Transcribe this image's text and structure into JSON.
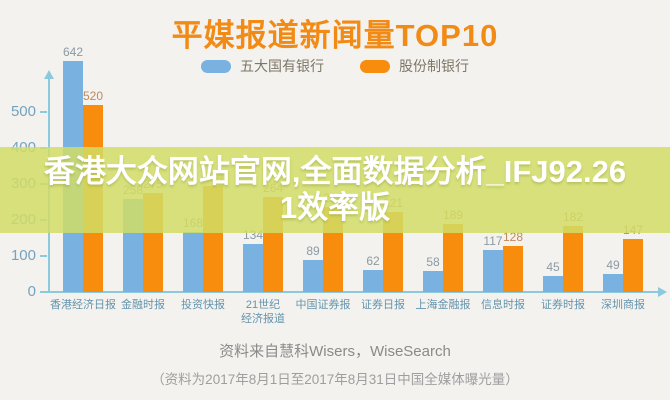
{
  "title": "平媒报道新闻量TOP10",
  "watermark": {
    "line1": "香港大众网站官网,全面数据分析_IFJ92.26",
    "line2": "1效率版"
  },
  "footer": {
    "line1": "资料来自慧科Wisers，WiseSearch",
    "line2": "（资料为2017年8月1日至2017年8月31日中国全媒体曝光量）"
  },
  "chart_data": {
    "type": "bar",
    "title": "平媒报道新闻量TOP10",
    "categories": [
      "香港经济日报",
      "金融时报",
      "投资快报",
      "21世纪\n经济报道",
      "中国证券报",
      "证券日报",
      "上海金融报",
      "信息时报",
      "证券时报",
      "深圳商报"
    ],
    "series": [
      {
        "name": "五大国有银行",
        "color": "#79b2e0",
        "label_color": "#8b9aa3",
        "values": [
          642,
          258,
          168,
          134,
          89,
          62,
          58,
          117,
          45,
          49
        ]
      },
      {
        "name": "股份制银行",
        "color": "#f78c0d",
        "label_color": "#c0895a",
        "values": [
          520,
          275,
          294,
          264,
          237,
          221,
          189,
          128,
          182,
          147
        ]
      }
    ],
    "yticks": [
      0,
      100,
      200,
      300,
      400,
      500
    ],
    "ylim": [
      0,
      650
    ],
    "xlabel": "",
    "ylabel": "",
    "grid": false,
    "legend_position": "top"
  },
  "colors": {
    "title": "#f28a16",
    "axis": "#8cc9dd",
    "tick_text": "#74a3c0",
    "category_text": "#6494ad",
    "background": "#f3f2ef",
    "watermark_band": "#d1dd65"
  }
}
